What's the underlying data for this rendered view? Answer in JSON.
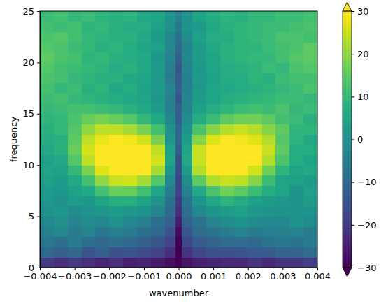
{
  "chart_data": {
    "type": "heatmap",
    "x_label": "wavenumber",
    "y_label": "frequency",
    "color": "viridis",
    "xlim": [
      -0.004,
      0.004
    ],
    "xticks": [
      {
        "value": -0.004,
        "label": "−0.004"
      },
      {
        "value": -0.003,
        "label": "−0.003"
      },
      {
        "value": -0.002,
        "label": "−0.002"
      },
      {
        "value": -0.001,
        "label": "−0.001"
      },
      {
        "value": 0,
        "label": "0.000"
      },
      {
        "value": 0.001,
        "label": "0.001"
      },
      {
        "value": 0.002,
        "label": "0.002"
      },
      {
        "value": 0.003,
        "label": "0.003"
      },
      {
        "value": 0.004,
        "label": "0.004"
      }
    ],
    "ylim": [
      0,
      25
    ],
    "yticks": [
      0,
      5,
      10,
      15,
      20,
      25
    ],
    "x_edges": [
      -0.004,
      -0.0036,
      -0.0032,
      -0.0028,
      -0.0024,
      -0.002,
      -0.0016,
      -0.0012,
      -0.0008,
      -0.0004,
      -0.0001,
      0.0001,
      0.0004,
      0.0008,
      0.0012,
      0.0016,
      0.002,
      0.0024,
      0.0028,
      0.0032,
      0.0036,
      0.004
    ],
    "y_edges": [
      0,
      1,
      2,
      3,
      4,
      5,
      6,
      7,
      8,
      9,
      10,
      11,
      12,
      13,
      14,
      15,
      16,
      17,
      18,
      19,
      20,
      21,
      22,
      23,
      24,
      25
    ],
    "cells": [
      [
        -20,
        -22,
        -20,
        -22,
        -24,
        -22,
        -25,
        -24,
        -26,
        -28,
        -32,
        -27,
        -25,
        -24,
        -23,
        -23,
        -21,
        -23,
        -21,
        -21,
        -19
      ],
      [
        -10,
        -12,
        -10,
        -14,
        -12,
        -15,
        -14,
        -16,
        -18,
        -22,
        -32,
        -21,
        -17,
        -15,
        -15,
        -14,
        -13,
        -13,
        -11,
        -11,
        -9
      ],
      [
        -6,
        -8,
        -5,
        -8,
        -10,
        -8,
        -10,
        -12,
        -14,
        -18,
        -30,
        -17,
        -13,
        -11,
        -9,
        -9,
        -10,
        -7,
        -6,
        -7,
        -5
      ],
      [
        -4,
        -2,
        -5,
        -3,
        -6,
        -4,
        -5,
        -8,
        -10,
        -15,
        -28,
        -14,
        -9,
        -7,
        -5,
        -3,
        -5,
        -4,
        -4,
        -3,
        -5
      ],
      [
        -2,
        0,
        -3,
        -1,
        -2,
        0,
        -2,
        -4,
        -8,
        -12,
        -25,
        -11,
        -7,
        -3,
        -1,
        1,
        -1,
        -2,
        -2,
        1,
        -1
      ],
      [
        0,
        2,
        -1,
        1,
        2,
        3,
        2,
        0,
        -3,
        -10,
        -22,
        -9,
        -2,
        1,
        3,
        4,
        2,
        1,
        0,
        1,
        1
      ],
      [
        2,
        0,
        3,
        2,
        5,
        8,
        8,
        5,
        0,
        -8,
        -20,
        -7,
        1,
        6,
        9,
        7,
        4,
        3,
        2,
        1,
        3
      ],
      [
        3,
        2,
        4,
        6,
        12,
        16,
        16,
        12,
        5,
        -5,
        -18,
        -4,
        6,
        13,
        17,
        15,
        11,
        7,
        5,
        1,
        4
      ],
      [
        4,
        3,
        6,
        12,
        20,
        25,
        26,
        22,
        14,
        -2,
        -18,
        -1,
        15,
        23,
        25,
        24,
        19,
        11,
        5,
        4,
        3
      ],
      [
        5,
        4,
        10,
        18,
        27,
        32,
        32,
        30,
        22,
        2,
        -16,
        3,
        23,
        31,
        33,
        31,
        26,
        17,
        9,
        5,
        6
      ],
      [
        4,
        6,
        14,
        24,
        32,
        34,
        34,
        32,
        26,
        5,
        -15,
        6,
        25,
        33,
        35,
        33,
        31,
        23,
        13,
        7,
        5
      ],
      [
        6,
        8,
        16,
        26,
        32,
        33,
        33,
        31,
        24,
        4,
        -12,
        5,
        25,
        30,
        34,
        32,
        31,
        25,
        15,
        7,
        7
      ],
      [
        7,
        8,
        15,
        24,
        28,
        30,
        29,
        26,
        18,
        2,
        -10,
        3,
        19,
        27,
        30,
        29,
        27,
        23,
        14,
        9,
        6
      ],
      [
        8,
        10,
        14,
        20,
        24,
        24,
        22,
        18,
        12,
        0,
        -10,
        1,
        13,
        19,
        23,
        25,
        23,
        19,
        15,
        9,
        9
      ],
      [
        9,
        10,
        13,
        16,
        18,
        16,
        14,
        10,
        6,
        -2,
        -12,
        -1,
        7,
        11,
        15,
        17,
        17,
        15,
        12,
        11,
        8
      ],
      [
        10,
        11,
        12,
        12,
        11,
        10,
        8,
        6,
        3,
        -4,
        -12,
        -3,
        4,
        7,
        9,
        11,
        12,
        11,
        13,
        10,
        11
      ],
      [
        11,
        12,
        10,
        9,
        8,
        7,
        6,
        5,
        2,
        -4,
        -14,
        -3,
        3,
        5,
        7,
        8,
        9,
        10,
        11,
        11,
        10
      ],
      [
        12,
        10,
        11,
        8,
        9,
        6,
        7,
        4,
        3,
        -3,
        -12,
        -4,
        2,
        5,
        6,
        7,
        8,
        9,
        10,
        11,
        13
      ],
      [
        13,
        12,
        10,
        9,
        8,
        8,
        6,
        5,
        2,
        -5,
        -13,
        -4,
        3,
        4,
        7,
        7,
        9,
        8,
        11,
        12,
        12
      ],
      [
        14,
        12,
        11,
        10,
        9,
        7,
        8,
        6,
        3,
        -4,
        -14,
        -3,
        2,
        5,
        7,
        8,
        9,
        11,
        10,
        13,
        14
      ],
      [
        15,
        13,
        12,
        9,
        10,
        8,
        7,
        6,
        2,
        -3,
        -12,
        -2,
        3,
        5,
        8,
        9,
        10,
        10,
        12,
        14,
        15
      ],
      [
        14,
        13,
        11,
        10,
        8,
        9,
        7,
        5,
        4,
        -2,
        -10,
        -3,
        3,
        6,
        8,
        9,
        9,
        11,
        12,
        13,
        15
      ],
      [
        13,
        14,
        12,
        10,
        9,
        8,
        8,
        6,
        3,
        -2,
        -8,
        -1,
        4,
        7,
        7,
        9,
        10,
        11,
        13,
        13,
        12
      ],
      [
        12,
        11,
        12,
        9,
        10,
        8,
        7,
        7,
        4,
        0,
        -6,
        1,
        3,
        6,
        8,
        9,
        10,
        11,
        11,
        12,
        13
      ],
      [
        11,
        12,
        10,
        11,
        9,
        8,
        9,
        6,
        5,
        1,
        -4,
        0,
        5,
        7,
        9,
        8,
        10,
        10,
        11,
        11,
        12
      ]
    ],
    "colorbar": {
      "range": [
        -30,
        30
      ],
      "ticks": [
        {
          "value": -30,
          "label": "−30"
        },
        {
          "value": -20,
          "label": "−20"
        },
        {
          "value": -10,
          "label": "−10"
        },
        0,
        10,
        20,
        30
      ]
    }
  }
}
